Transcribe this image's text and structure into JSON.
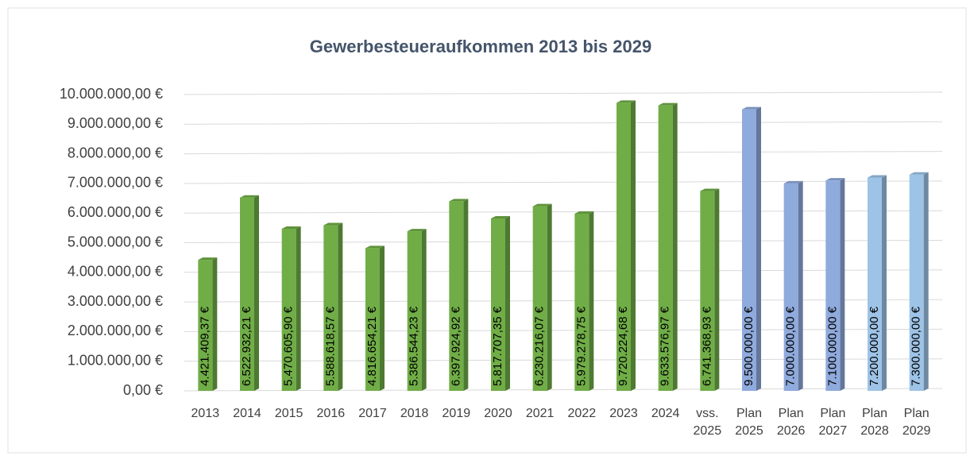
{
  "chart_data": {
    "type": "bar",
    "title": "Gewerbesteueraufkommen 2013 bis 2029",
    "categories": [
      "2013",
      "2014",
      "2015",
      "2016",
      "2017",
      "2018",
      "2019",
      "2020",
      "2021",
      "2022",
      "2023",
      "2024",
      "vss. 2025",
      "Plan 2025",
      "Plan 2026",
      "Plan 2027",
      "Plan 2028",
      "Plan 2029"
    ],
    "values": [
      4421409.37,
      6522932.21,
      5470605.9,
      5588618.57,
      4816654.21,
      5386544.23,
      6397924.92,
      5817707.35,
      6230216.07,
      5979278.75,
      9720224.68,
      9633576.97,
      6741368.93,
      9500000.0,
      7000000.0,
      7100000.0,
      7200000.0,
      7300000.0
    ],
    "value_labels": [
      "4.421.409,37 €",
      "6.522.932,21 €",
      "5.470.605,90 €",
      "5.588.618,57 €",
      "4.816.654,21 €",
      "5.386.544,23 €",
      "6.397.924,92 €",
      "5.817.707,35 €",
      "6.230.216,07 €",
      "5.979.278,75 €",
      "9.720.224,68 €",
      "9.633.576,97 €",
      "6.741.368,93 €",
      "9.500.000,00 €",
      "7.000.000,00 €",
      "7.100.000,00 €",
      "7.200.000,00 €",
      "7.300.000,00 €"
    ],
    "colors": [
      "#70ad47",
      "#70ad47",
      "#70ad47",
      "#70ad47",
      "#70ad47",
      "#70ad47",
      "#70ad47",
      "#70ad47",
      "#70ad47",
      "#70ad47",
      "#70ad47",
      "#70ad47",
      "#70ad47",
      "#8faadc",
      "#8faadc",
      "#8faadc",
      "#9dc3e6",
      "#9dc3e6"
    ],
    "ylim": [
      0,
      10000000
    ],
    "yticks": [
      {
        "value": 0,
        "label": "0,00 €"
      },
      {
        "value": 1000000,
        "label": "1.000.000,00 €"
      },
      {
        "value": 2000000,
        "label": "2.000.000,00 €"
      },
      {
        "value": 3000000,
        "label": "3.000.000,00 €"
      },
      {
        "value": 4000000,
        "label": "4.000.000,00 €"
      },
      {
        "value": 5000000,
        "label": "5.000.000,00 €"
      },
      {
        "value": 6000000,
        "label": "6.000.000,00 €"
      },
      {
        "value": 7000000,
        "label": "7.000.000,00 €"
      },
      {
        "value": 8000000,
        "label": "8.000.000,00 €"
      },
      {
        "value": 9000000,
        "label": "9.000.000,00 €"
      },
      {
        "value": 10000000,
        "label": "10.000.000,00 €"
      }
    ],
    "grid": true
  }
}
